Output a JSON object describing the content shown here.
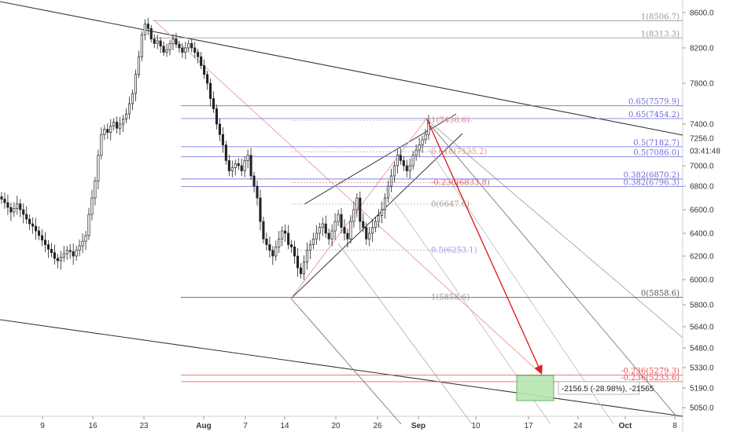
{
  "chart_data": {
    "type": "candlestick",
    "x_ticks": [
      "9",
      "16",
      "23",
      "Aug",
      "7",
      "14",
      "20",
      "26",
      "Sep",
      "10",
      "17",
      "24",
      "Oct",
      "8"
    ],
    "x_ticks_bold": [
      "Aug",
      "Sep",
      "Oct"
    ],
    "y_ticks": [
      8600,
      8200,
      7800,
      7400,
      7000,
      6800,
      6600,
      6400,
      6200,
      6000,
      5800,
      5640,
      5480,
      5330,
      5190,
      5050
    ],
    "y_axis_extra_labels": [
      "7256.0",
      "03:41:48"
    ],
    "fib_levels": [
      {
        "label": "1(8506.7)",
        "value": 8506.7,
        "color": "#999999"
      },
      {
        "label": "1(8313.3)",
        "value": 8313.3,
        "color": "#999999"
      },
      {
        "label": "0.65(7579.9)",
        "value": 7579.9,
        "color": "#6b6bd6"
      },
      {
        "label": "0.65(7454.2)",
        "value": 7454.2,
        "color": "#6b6bd6"
      },
      {
        "label": "0.5(7182.7)",
        "value": 7182.7,
        "color": "#6b6bd6"
      },
      {
        "label": "0.5(7086.0)",
        "value": 7086.0,
        "color": "#6b6bd6"
      },
      {
        "label": "0.382(6870.2)",
        "value": 6870.2,
        "color": "#6b6bd6"
      },
      {
        "label": "0.382(6796.3)",
        "value": 6796.3,
        "color": "#6b6bd6"
      },
      {
        "label": "0(5858.6)",
        "value": 5858.6,
        "color": "#555555"
      },
      {
        "label": "-0.236(5279.3)",
        "value": 5279.3,
        "color": "#e05050"
      },
      {
        "label": "-0.236(5233.6)",
        "value": 5233.6,
        "color": "#e05050"
      }
    ],
    "inner_fib_labels": [
      {
        "label": "1(7436.6)",
        "value": 7436.6,
        "color": "#e09090"
      },
      {
        "label": "0.618(7135.2)",
        "value": 7135.2,
        "color": "#e09090"
      },
      {
        "label": "-0.236(6833.8)",
        "value": 6833.8,
        "color": "#e06060"
      },
      {
        "label": "0(6647.6)",
        "value": 6647.6,
        "color": "#999999"
      },
      {
        "label": "0.5(6253.1)",
        "value": 6253.1,
        "color": "#9a9ae0"
      },
      {
        "label": "1(5858.6)",
        "value": 5858.6,
        "color": "#999999"
      }
    ],
    "measurement_label": "-2156.5 (-28.98%), -21565",
    "target_price": 5190,
    "price_series": [
      6690,
      6660,
      6620,
      6580,
      6610,
      6650,
      6600,
      6560,
      6520,
      6480,
      6460,
      6420,
      6380,
      6340,
      6300,
      6260,
      6230,
      6180,
      6160,
      6190,
      6220,
      6250,
      6240,
      6200,
      6250,
      6290,
      6330,
      6380,
      6560,
      6700,
      6850,
      7100,
      7300,
      7350,
      7320,
      7380,
      7420,
      7360,
      7400,
      7450,
      7500,
      7600,
      7700,
      7900,
      8100,
      8350,
      8470,
      8420,
      8300,
      8250,
      8280,
      8220,
      8150,
      8180,
      8250,
      8300,
      8240,
      8200,
      8150,
      8200,
      8250,
      8200,
      8150,
      8100,
      8000,
      7900,
      7800,
      7650,
      7550,
      7400,
      7300,
      7200,
      7050,
      6950,
      6980,
      7020,
      7000,
      6950,
      7050,
      7100,
      6900,
      6800,
      6700,
      6500,
      6350,
      6300,
      6250,
      6200,
      6280,
      6350,
      6420,
      6400,
      6300,
      6280,
      6200,
      6100,
      6050,
      6150,
      6250,
      6300,
      6350,
      6400,
      6450,
      6480,
      6400,
      6350,
      6420,
      6500,
      6560,
      6450,
      6400,
      6350,
      6500,
      6600,
      6700,
      6500,
      6450,
      6350,
      6400,
      6450,
      6500,
      6550,
      6600,
      6700,
      6800,
      6900,
      7000,
      7100,
      7050,
      7000,
      6950,
      7000,
      7100,
      7150,
      7200,
      7250,
      7300,
      7420
    ]
  }
}
